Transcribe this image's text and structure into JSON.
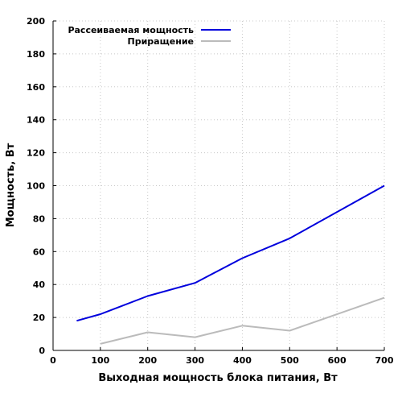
{
  "chart_data": {
    "type": "line",
    "title": "",
    "xlabel": "Выходная мощность блока питания, Вт",
    "ylabel": "Мощность, Вт",
    "xlim": [
      0,
      700
    ],
    "ylim": [
      0,
      200
    ],
    "x_ticks": [
      0,
      100,
      200,
      300,
      400,
      500,
      600,
      700
    ],
    "y_ticks": [
      0,
      20,
      40,
      60,
      80,
      100,
      120,
      140,
      160,
      180,
      200
    ],
    "grid": true,
    "legend_position": "top-left",
    "series": [
      {
        "name": "Рассеиваемая мощность",
        "color": "#0000dd",
        "x": [
          50,
          100,
          200,
          300,
          400,
          500,
          700
        ],
        "values": [
          18,
          22,
          33,
          41,
          56,
          68,
          100
        ]
      },
      {
        "name": "Приращение",
        "color": "#bbbbbb",
        "x": [
          100,
          200,
          300,
          400,
          500,
          700
        ],
        "values": [
          4,
          11,
          8,
          15,
          12,
          32
        ]
      }
    ]
  }
}
